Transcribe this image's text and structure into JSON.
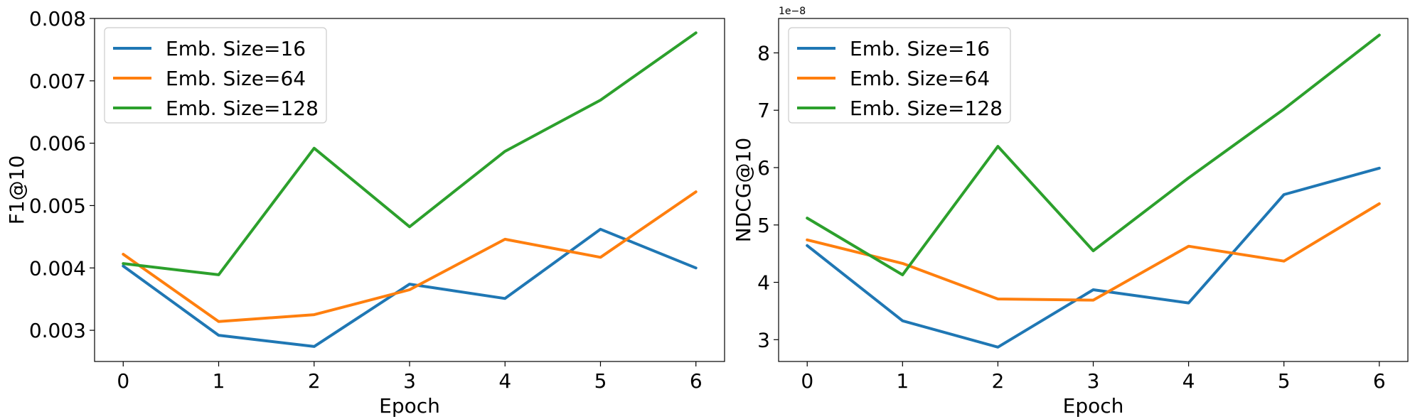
{
  "chart_data": [
    {
      "type": "line",
      "xlabel": "Epoch",
      "ylabel": "F1@10",
      "x": [
        0,
        1,
        2,
        3,
        4,
        5,
        6
      ],
      "xticks": [
        "0",
        "1",
        "2",
        "3",
        "4",
        "5",
        "6"
      ],
      "xlim": [
        -0.3,
        6.3
      ],
      "ylim": [
        0.0025,
        0.008
      ],
      "yticks": [
        0.003,
        0.004,
        0.005,
        0.006,
        0.007,
        0.008
      ],
      "ytick_labels": [
        "0.003",
        "0.004",
        "0.005",
        "0.006",
        "0.007",
        "0.008"
      ],
      "y_offset_label": "",
      "grid": false,
      "legend_position": "upper-left",
      "series": [
        {
          "name": "Emb. Size=16",
          "color": "#1f77b4",
          "values": [
            0.00403,
            0.00292,
            0.00274,
            0.00374,
            0.00351,
            0.00462,
            0.004
          ]
        },
        {
          "name": "Emb. Size=64",
          "color": "#ff7f0e",
          "values": [
            0.00422,
            0.00314,
            0.00325,
            0.00365,
            0.00446,
            0.00417,
            0.00522
          ]
        },
        {
          "name": "Emb. Size=128",
          "color": "#2ca02c",
          "values": [
            0.00407,
            0.00389,
            0.00592,
            0.00466,
            0.00587,
            0.00669,
            0.00777
          ]
        }
      ]
    },
    {
      "type": "line",
      "xlabel": "Epoch",
      "ylabel": "NDCG@10",
      "x": [
        0,
        1,
        2,
        3,
        4,
        5,
        6
      ],
      "xticks": [
        "0",
        "1",
        "2",
        "3",
        "4",
        "5",
        "6"
      ],
      "xlim": [
        -0.3,
        6.3
      ],
      "ylim": [
        2.62,
        8.6
      ],
      "yticks": [
        3,
        4,
        5,
        6,
        7,
        8
      ],
      "ytick_labels": [
        "3",
        "4",
        "5",
        "6",
        "7",
        "8"
      ],
      "y_offset_label": "1e−8",
      "grid": false,
      "legend_position": "upper-left",
      "series": [
        {
          "name": "Emb. Size=16",
          "color": "#1f77b4",
          "values": [
            4.64,
            3.33,
            2.87,
            3.87,
            3.64,
            5.53,
            5.99
          ]
        },
        {
          "name": "Emb. Size=64",
          "color": "#ff7f0e",
          "values": [
            4.74,
            4.33,
            3.71,
            3.69,
            4.63,
            4.37,
            5.37
          ]
        },
        {
          "name": "Emb. Size=128",
          "color": "#2ca02c",
          "values": [
            5.12,
            4.13,
            6.37,
            4.55,
            5.82,
            7.02,
            8.31
          ]
        }
      ]
    }
  ]
}
